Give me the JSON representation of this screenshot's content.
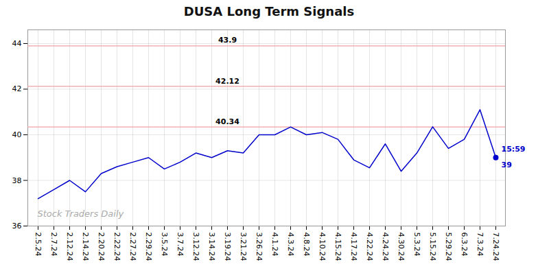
{
  "chart_data": {
    "type": "line",
    "title": "DUSA Long Term Signals",
    "categories": [
      "2.5.24",
      "2.7.24",
      "2.12.24",
      "2.14.24",
      "2.20.24",
      "2.22.24",
      "2.27.24",
      "2.29.24",
      "3.5.24",
      "3.7.24",
      "3.12.24",
      "3.14.24",
      "3.19.24",
      "3.21.24",
      "3.26.24",
      "4.1.24",
      "4.3.24",
      "4.8.24",
      "4.10.24",
      "4.15.24",
      "4.17.24",
      "4.22.24",
      "4.24.24",
      "4.30.24",
      "5.3.24",
      "5.15.24",
      "5.29.24",
      "6.3.24",
      "7.3.24",
      "7.24.24"
    ],
    "values": [
      37.2,
      37.6,
      38.0,
      37.5,
      38.3,
      38.6,
      38.8,
      39.0,
      38.5,
      38.8,
      39.2,
      39.0,
      39.3,
      39.2,
      40.0,
      40.0,
      40.34,
      40.0,
      40.1,
      39.8,
      38.9,
      38.55,
      39.6,
      38.4,
      39.2,
      40.35,
      39.4,
      39.8,
      41.1,
      39.0
    ],
    "color": "#0000cc",
    "hlines": [
      {
        "value": 43.9,
        "label": "43.9",
        "color": "#f0a0a0"
      },
      {
        "value": 42.12,
        "label": "42.12",
        "color": "#f0a0a0"
      },
      {
        "value": 40.34,
        "label": "40.34",
        "color": "#f0a0a0"
      }
    ],
    "annotations": [
      {
        "text": "15:59"
      },
      {
        "text": "39",
        "value": 39
      },
      {
        "text": "Stock Traders Daily"
      }
    ],
    "ylim": [
      36,
      44.6
    ],
    "yticks": [
      36,
      38,
      40,
      42,
      44
    ],
    "grid": true
  }
}
